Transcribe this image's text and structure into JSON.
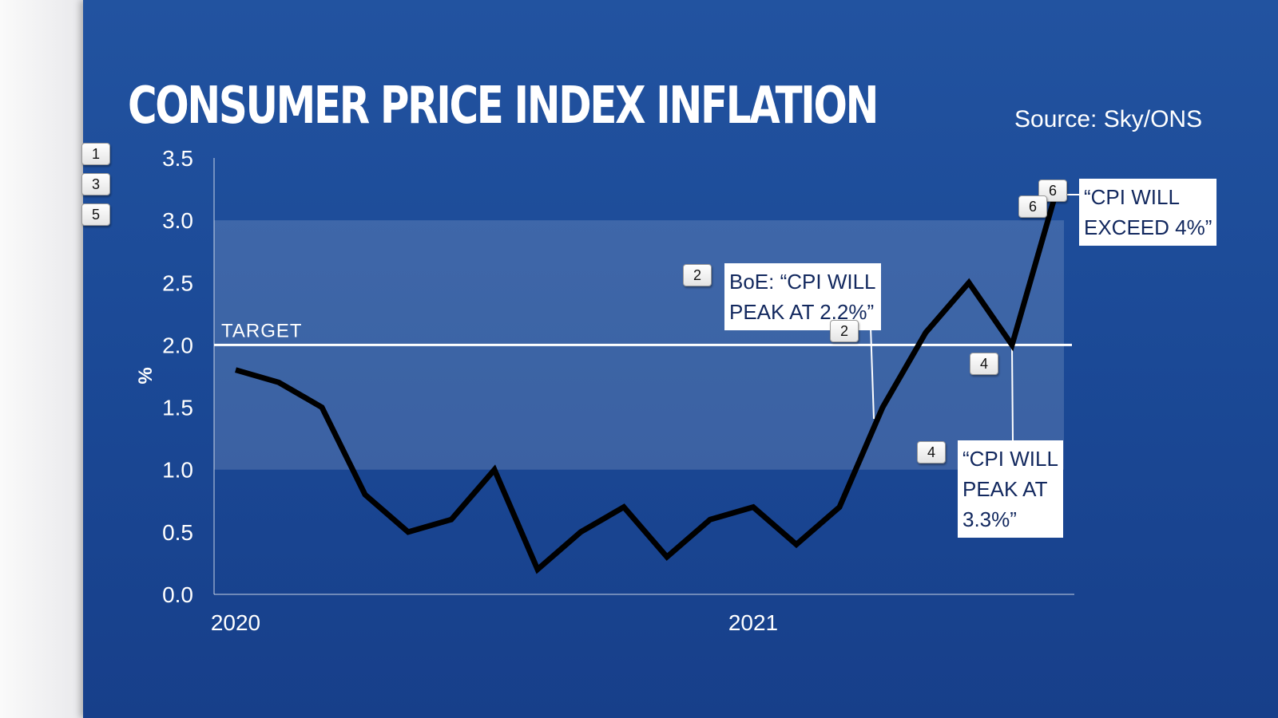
{
  "chart_data": {
    "type": "line",
    "title": "CONSUMER PRICE INDEX INFLATION",
    "source": "Source: Sky/ONS",
    "ylabel": "%",
    "ylim": [
      0,
      3.5
    ],
    "yticks": [
      "0.0",
      "0.5",
      "1.0",
      "1.5",
      "2.0",
      "2.5",
      "3.0",
      "3.5"
    ],
    "xtick_labels": [
      {
        "label": "2020",
        "index": 0
      },
      {
        "label": "2021",
        "index": 12
      }
    ],
    "values": [
      1.8,
      1.7,
      1.5,
      0.8,
      0.5,
      0.6,
      1.0,
      0.2,
      0.5,
      0.7,
      0.3,
      0.6,
      0.7,
      0.4,
      0.7,
      1.5,
      2.1,
      2.5,
      2.0,
      3.2
    ],
    "band": [
      1.0,
      3.0
    ],
    "target": {
      "value": 2.0,
      "label": "TARGET"
    },
    "line_color": "#000000",
    "background_color": "#1d4b98",
    "grid": false,
    "annotations": [
      {
        "text": "BoE: “CPI WILL\nPEAK AT 2.2%”",
        "index": 15
      },
      {
        "text": "“CPI WILL\nPEAK AT\n3.3%”",
        "index": 18
      },
      {
        "text": "“CPI WILL\nEXCEED 4%”",
        "index": 19
      }
    ]
  },
  "marker_tags": [
    "1",
    "3",
    "5",
    "2",
    "2",
    "4",
    "4",
    "6",
    "6"
  ]
}
